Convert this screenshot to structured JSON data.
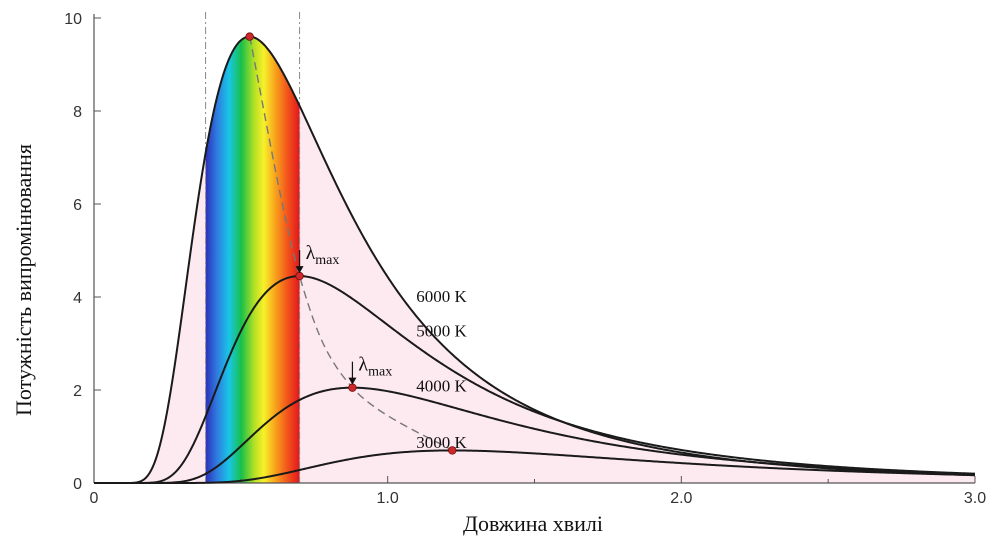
{
  "chart_data": {
    "type": "line",
    "xlabel": "Довжина хвилі",
    "ylabel": "Потужність випромінювання",
    "xlim": [
      0,
      3.0
    ],
    "ylim": [
      0,
      10
    ],
    "x_ticks": [
      0,
      1.0,
      2.0,
      3.0
    ],
    "x_tick_labels": [
      "0",
      "1.0",
      "2.0",
      "3.0"
    ],
    "y_ticks": [
      0,
      2,
      4,
      6,
      8,
      10
    ],
    "y_tick_labels": [
      "0",
      "2",
      "4",
      "6",
      "8",
      "10"
    ],
    "visible_band": [
      0.38,
      0.7
    ],
    "series": [
      {
        "name": "6000 K",
        "temperature": 6000,
        "peak": [
          0.53,
          9.6
        ]
      },
      {
        "name": "5000 K",
        "temperature": 5000,
        "peak": [
          0.7,
          4.45
        ]
      },
      {
        "name": "4000 K",
        "temperature": 4000,
        "peak": [
          0.88,
          2.05
        ]
      },
      {
        "name": "3000 K",
        "temperature": 3000,
        "peak": [
          1.22,
          0.7
        ]
      }
    ],
    "annotations": [
      {
        "text": "λ",
        "subscript": "max",
        "at": [
          0.7,
          4.45
        ]
      },
      {
        "text": "λ",
        "subscript": "max",
        "at": [
          0.88,
          2.05
        ]
      }
    ],
    "colors": {
      "fill_6000": "#fde9f0",
      "curve": "#1a1a1a",
      "peak_marker": "#d0282a",
      "wien_line": "#777777",
      "band_edges": "#888888"
    }
  }
}
